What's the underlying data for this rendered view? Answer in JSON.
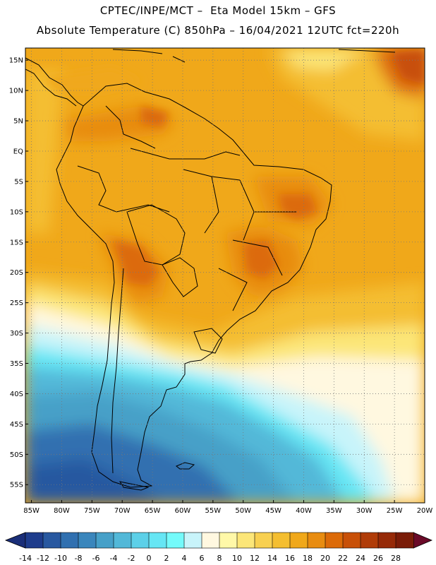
{
  "header": {
    "line1": "CPTEC/INPE/MCT –  Eta Model 15km – GFS",
    "line2": "Absolute Temperature (C) 850hPa – 16/04/2021 12UTC fct=220h"
  },
  "axes": {
    "lat_labels": [
      {
        "text": "15N",
        "lat": 15
      },
      {
        "text": "10N",
        "lat": 10
      },
      {
        "text": "5N",
        "lat": 5
      },
      {
        "text": "EQ",
        "lat": 0
      },
      {
        "text": "5S",
        "lat": -5
      },
      {
        "text": "10S",
        "lat": -10
      },
      {
        "text": "15S",
        "lat": -15
      },
      {
        "text": "20S",
        "lat": -20
      },
      {
        "text": "25S",
        "lat": -25
      },
      {
        "text": "30S",
        "lat": -30
      },
      {
        "text": "35S",
        "lat": -35
      },
      {
        "text": "40S",
        "lat": -40
      },
      {
        "text": "45S",
        "lat": -45
      },
      {
        "text": "50S",
        "lat": -50
      },
      {
        "text": "55S",
        "lat": -55
      }
    ],
    "lon_labels": [
      {
        "text": "85W",
        "lon": -85
      },
      {
        "text": "80W",
        "lon": -80
      },
      {
        "text": "75W",
        "lon": -75
      },
      {
        "text": "70W",
        "lon": -70
      },
      {
        "text": "65W",
        "lon": -65
      },
      {
        "text": "60W",
        "lon": -60
      },
      {
        "text": "55W",
        "lon": -55
      },
      {
        "text": "50W",
        "lon": -50
      },
      {
        "text": "45W",
        "lon": -45
      },
      {
        "text": "40W",
        "lon": -40
      },
      {
        "text": "35W",
        "lon": -35
      },
      {
        "text": "30W",
        "lon": -30
      },
      {
        "text": "25W",
        "lon": -25
      },
      {
        "text": "20W",
        "lon": -20
      }
    ],
    "lon_range": [
      -86,
      -20
    ],
    "lat_range": [
      -58,
      17
    ]
  },
  "colorbar": {
    "unit": "C",
    "ticks": [
      "-14",
      "-12",
      "-10",
      "-8",
      "-6",
      "-4",
      "-2",
      "0",
      "2",
      "4",
      "6",
      "8",
      "10",
      "12",
      "14",
      "16",
      "18",
      "20",
      "22",
      "24",
      "26",
      "28"
    ],
    "colors": [
      "#1e3c8c",
      "#2858a0",
      "#3070b0",
      "#3a86bc",
      "#46a0c8",
      "#52b8d8",
      "#5cd0e8",
      "#66e6f4",
      "#74fafa",
      "#c8f4fa",
      "#fff8e0",
      "#fff8a8",
      "#fce678",
      "#f8d050",
      "#f4be30",
      "#f0a81a",
      "#e88c10",
      "#dc6a08",
      "#c85008",
      "#b03c08",
      "#962a08",
      "#7a1c08"
    ],
    "below_color": "#1a2e78",
    "above_color": "#6a0a28"
  }
}
